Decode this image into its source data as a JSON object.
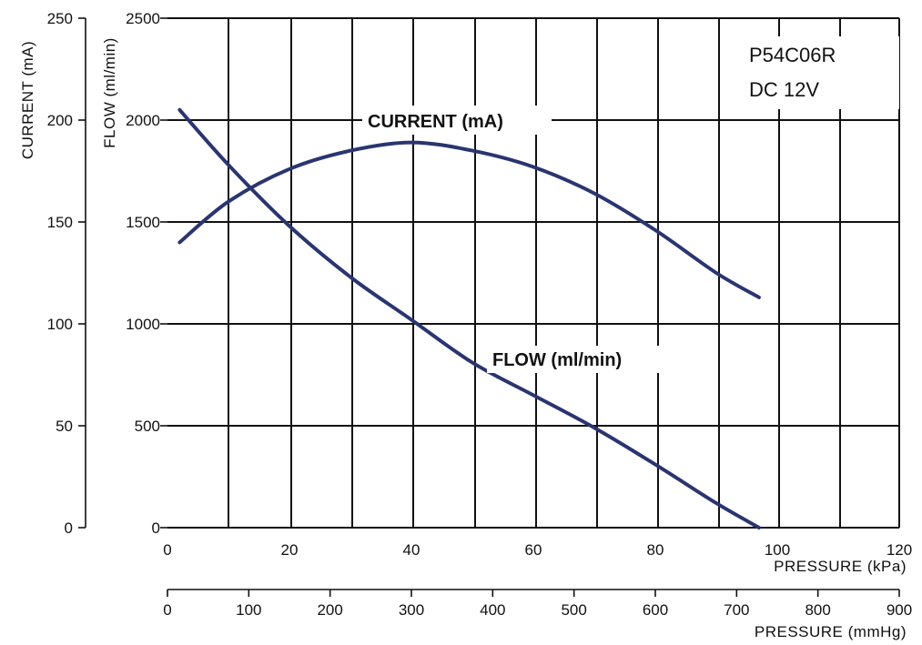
{
  "chart_data": {
    "type": "line",
    "model": [
      "P54C06R",
      "DC 12V"
    ],
    "x_kpa": {
      "label": "PRESSURE (kPa)",
      "range": [
        0,
        120
      ],
      "ticks": [
        0,
        20,
        40,
        60,
        80,
        100,
        120
      ]
    },
    "x_mmhg": {
      "label": "PRESSURE (mmHg)",
      "range": [
        0,
        900
      ],
      "ticks": [
        0,
        100,
        200,
        300,
        400,
        500,
        600,
        700,
        800,
        900
      ]
    },
    "y_current": {
      "label": "CURRENT (mA)",
      "range": [
        0,
        250
      ],
      "ticks": [
        0,
        50,
        100,
        150,
        200,
        250
      ]
    },
    "y_flow": {
      "label": "FLOW (ml/min)",
      "range": [
        0,
        2500
      ],
      "ticks": [
        0,
        500,
        1000,
        1500,
        2000,
        2500
      ]
    },
    "grid": true,
    "series": [
      {
        "name": "CURRENT (mA)",
        "axis": "current",
        "color": "#2a3570",
        "x": [
          2,
          10,
          20,
          30,
          40,
          50,
          60,
          70,
          80,
          90,
          97
        ],
        "y": [
          140,
          160,
          176,
          185,
          189,
          185,
          177,
          164,
          146,
          125,
          113
        ]
      },
      {
        "name": "FLOW (ml/min)",
        "axis": "flow",
        "color": "#2a3570",
        "x": [
          2,
          10,
          20,
          30,
          40,
          50,
          60,
          70,
          80,
          90,
          97
        ],
        "y": [
          2050,
          1780,
          1480,
          1230,
          1020,
          810,
          650,
          490,
          310,
          120,
          0
        ]
      }
    ]
  }
}
